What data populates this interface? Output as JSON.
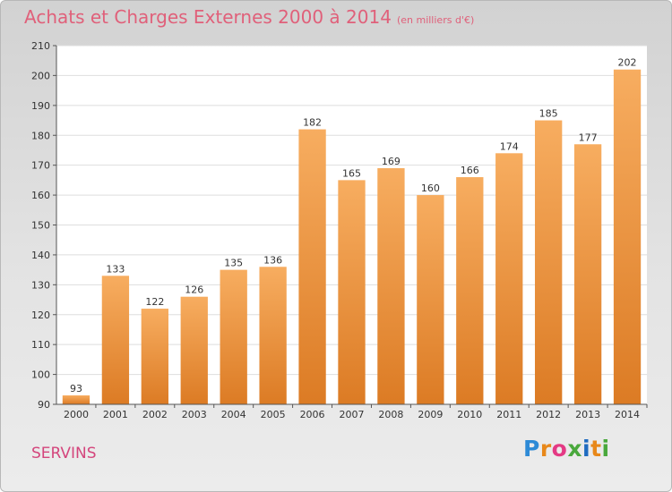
{
  "chart_title": "Achats et Charges Externes 2000 à 2014",
  "chart_subtitle": "(en milliers d'€)",
  "commune": "SERVINS",
  "logo": {
    "text": "Proxiti",
    "letter_colors": [
      "#2d8ad6",
      "#e8881a",
      "#e43a84",
      "#49a83c",
      "#1f6bc0",
      "#e8881a",
      "#49a83c"
    ]
  },
  "colors": {
    "bar": "#f0923c",
    "bar_light": "#f7ad60",
    "bar_dark": "#dc7b24",
    "title": "#e0607a"
  },
  "chart_data": {
    "type": "bar",
    "title": "Achats et Charges Externes 2000 à 2014",
    "subtitle": "(en milliers d'€)",
    "xlabel": "",
    "ylabel": "",
    "categories": [
      "2000",
      "2001",
      "2002",
      "2003",
      "2004",
      "2005",
      "2006",
      "2007",
      "2008",
      "2009",
      "2010",
      "2011",
      "2012",
      "2013",
      "2014"
    ],
    "values": [
      93,
      133,
      122,
      126,
      135,
      136,
      182,
      165,
      169,
      160,
      166,
      174,
      185,
      177,
      202
    ],
    "ylim": [
      90,
      210
    ],
    "yticks": [
      90,
      100,
      110,
      120,
      130,
      140,
      150,
      160,
      170,
      180,
      190,
      200,
      210
    ],
    "grid": true,
    "legend": "none"
  }
}
